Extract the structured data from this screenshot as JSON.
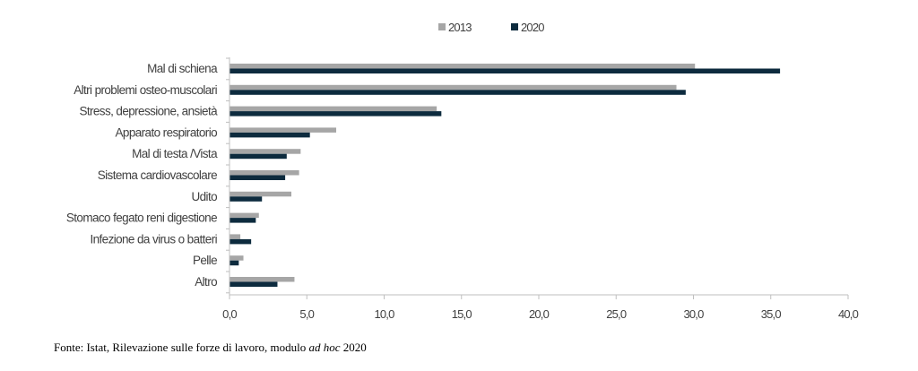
{
  "chart_data": {
    "type": "bar",
    "orientation": "horizontal",
    "categories": [
      "Mal di schiena",
      "Altri problemi osteo-muscolari",
      "Stress, depressione, ansietà",
      "Apparato respiratorio",
      "Mal di testa /Vista",
      "Sistema cardiovascolare",
      "Udito",
      "Stomaco fegato reni digestione",
      "Infezione da virus o batteri",
      "Pelle",
      "Altro"
    ],
    "series": [
      {
        "name": "2013",
        "color": "#a6a6a6",
        "values": [
          30.1,
          28.9,
          13.4,
          6.9,
          4.6,
          4.5,
          4.0,
          1.9,
          0.7,
          0.9,
          4.2
        ]
      },
      {
        "name": "2020",
        "color": "#0d2b3e",
        "values": [
          35.6,
          29.5,
          13.7,
          5.2,
          3.7,
          3.6,
          2.1,
          1.7,
          1.4,
          0.6,
          3.1
        ]
      }
    ],
    "xlim": [
      0,
      40
    ],
    "ticks": [
      "0,0",
      "5,0",
      "10,0",
      "15,0",
      "20,0",
      "25,0",
      "30,0",
      "35,0",
      "40,0"
    ],
    "legend": "top",
    "grid": false
  },
  "source": {
    "prefix": "Fonte: Istat, Rilevazione sulle forze di lavoro, modulo ",
    "italic": "ad hoc",
    "suffix": " 2020"
  }
}
